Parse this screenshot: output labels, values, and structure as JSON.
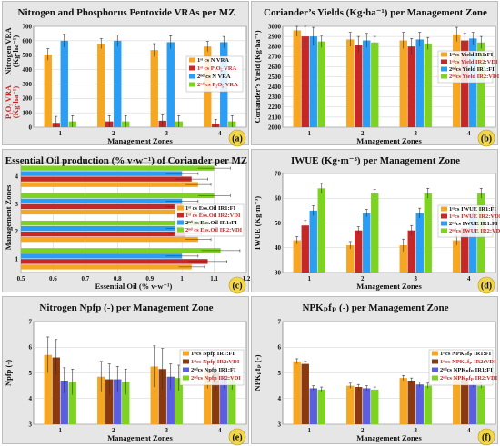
{
  "chart_data": [
    {
      "id": "a",
      "type": "bar",
      "letter": "(a)",
      "title": "Nitrogen and Phosphorus Pentoxide VRAs per MZ",
      "xlabel": "Management Zones",
      "ylabel_lines": [
        {
          "text": "Nitrogen VRA",
          "color": "#111111"
        },
        {
          "text": "(Kg·ha⁻¹)",
          "color": "#111111"
        },
        {
          "text": "P₂O₅ VRA",
          "color": "#c62828"
        },
        {
          "text": "(Kg·ha⁻¹)",
          "color": "#c62828"
        }
      ],
      "categories": [
        "1",
        "2",
        "3",
        "4"
      ],
      "ylim": [
        0,
        700
      ],
      "yticks": [
        0,
        100,
        200,
        300,
        400,
        500,
        600,
        700
      ],
      "series": [
        {
          "name": "1ˢᵗ cs N VRA",
          "color": "#f5a623",
          "text_color": "#111111",
          "values": [
            505,
            580,
            535,
            560
          ],
          "err": [
            40,
            35,
            45,
            35
          ]
        },
        {
          "name": "1ˢᵗ cs P₂O₅ VRA",
          "color": "#c62828",
          "text_color": "#c62828",
          "values": [
            30,
            40,
            45,
            25
          ],
          "err": [
            45,
            40,
            40,
            30
          ]
        },
        {
          "name": "2ⁿᵈ cs N VRA",
          "color": "#2a9df4",
          "text_color": "#111111",
          "values": [
            600,
            600,
            590,
            590
          ],
          "err": [
            45,
            40,
            45,
            40
          ]
        },
        {
          "name": "2ⁿᵈ cs P₂O₅ VRA",
          "color": "#7ed321",
          "text_color": "#c62828",
          "values": [
            40,
            40,
            40,
            40
          ],
          "err": [
            40,
            40,
            40,
            40
          ]
        }
      ]
    },
    {
      "id": "b",
      "type": "bar",
      "letter": "(b)",
      "title": "Coriander’s Yields (Kg·ha⁻¹) per Management Zone",
      "xlabel": "Management Zones",
      "ylabel_lines": [
        {
          "text": "Coriander’s Yield (Kg·ha⁻¹)",
          "color": "#111111"
        }
      ],
      "categories": [
        "1",
        "2",
        "3",
        "4"
      ],
      "ylim": [
        2000,
        3000
      ],
      "yticks": [
        2000,
        2100,
        2200,
        2300,
        2400,
        2500,
        2600,
        2700,
        2800,
        2900,
        3000
      ],
      "series": [
        {
          "name": "1ˢᵗcs Yield IR1:FI",
          "color": "#f5a623",
          "text_color": "#111111",
          "values": [
            2960,
            2870,
            2860,
            2920
          ],
          "err": [
            60,
            70,
            80,
            70
          ]
        },
        {
          "name": "1ˢᵗcs Yield IR2:VDI",
          "color": "#c62828",
          "text_color": "#c62828",
          "values": [
            2900,
            2820,
            2800,
            2860
          ],
          "err": [
            120,
            80,
            80,
            70
          ]
        },
        {
          "name": "2ⁿᵈcs Yield IR1:FI",
          "color": "#2a9df4",
          "text_color": "#111111",
          "values": [
            2900,
            2860,
            2870,
            2880
          ],
          "err": [
            90,
            70,
            70,
            60
          ]
        },
        {
          "name": "2ⁿᵈcs Yield IR2:VDI",
          "color": "#7ed321",
          "text_color": "#c62828",
          "values": [
            2850,
            2840,
            2830,
            2840
          ],
          "err": [
            60,
            60,
            60,
            60
          ]
        }
      ]
    },
    {
      "id": "c",
      "type": "hbar",
      "letter": "(c)",
      "title": "Essential Oil production (% v·w⁻¹) of Coriander per MZ",
      "xlabel": "Essential Oil (% v·w⁻¹)",
      "ylabel_lines": [
        {
          "text": "Management Zones",
          "color": "#111111"
        }
      ],
      "categories": [
        "1",
        "2",
        "3",
        "4"
      ],
      "xlim": [
        0.5,
        1.2
      ],
      "xticks": [
        0.5,
        0.6,
        0.7,
        0.8,
        0.9,
        1.0,
        1.1,
        1.2
      ],
      "series": [
        {
          "name": "1ˢᵗ cs Ess.Oil IR1:FI",
          "color": "#f5a623",
          "text_color": "#111111",
          "values": [
            1.03,
            1.05,
            1.03,
            1.05
          ],
          "err": [
            0.04,
            0.04,
            0.04,
            0.04
          ]
        },
        {
          "name": "1ˢᵗ cs Ess.Oil IR2:VDI",
          "color": "#c62828",
          "text_color": "#c62828",
          "values": [
            1.08,
            1.01,
            1.0,
            1.03
          ],
          "err": [
            0.06,
            0.05,
            0.05,
            0.05
          ]
        },
        {
          "name": "2ⁿᵈ cs Ess.Oil IR1:FI",
          "color": "#2a9df4",
          "text_color": "#111111",
          "values": [
            1.0,
            1.0,
            1.0,
            1.0
          ],
          "err": [
            0.05,
            0.05,
            0.05,
            0.05
          ]
        },
        {
          "name": "2ⁿᵈ cs Ess.Oil IR2:VDI",
          "color": "#7ed321",
          "text_color": "#c62828",
          "values": [
            1.12,
            1.08,
            1.1,
            1.1
          ],
          "err": [
            0.06,
            0.05,
            0.05,
            0.05
          ]
        }
      ]
    },
    {
      "id": "d",
      "type": "bar",
      "letter": "(d)",
      "title": "IWUE (Kg·m⁻³) per Management Zone",
      "xlabel": "Management Zones",
      "ylabel_lines": [
        {
          "text": "IWUE (Kg·m⁻³)",
          "color": "#111111"
        }
      ],
      "categories": [
        "1",
        "2",
        "3",
        "4"
      ],
      "ylim": [
        30,
        70
      ],
      "yticks": [
        30,
        40,
        50,
        60,
        70
      ],
      "series": [
        {
          "name": "1ˢᵗcs IWUE IR1:FI",
          "color": "#f5a623",
          "text_color": "#111111",
          "values": [
            43,
            41,
            41,
            43
          ],
          "err": [
            1.5,
            1.5,
            2.5,
            2
          ]
        },
        {
          "name": "1ˢᵗcs IWUE IR2:VDI",
          "color": "#c62828",
          "text_color": "#c62828",
          "values": [
            49,
            47,
            47,
            48
          ],
          "err": [
            2,
            1.5,
            2,
            2
          ]
        },
        {
          "name": "2ⁿᵈcs IWUE IR1:FI",
          "color": "#2a9df4",
          "text_color": "#111111",
          "values": [
            55,
            54,
            54,
            54
          ],
          "err": [
            2,
            1.5,
            2,
            2
          ]
        },
        {
          "name": "2ⁿᵈcs IWUE IR2:VDI",
          "color": "#7ed321",
          "text_color": "#c62828",
          "values": [
            64,
            62,
            62,
            62
          ],
          "err": [
            2,
            1.5,
            2,
            2
          ]
        }
      ]
    },
    {
      "id": "e",
      "type": "bar",
      "letter": "(e)",
      "title": "Nitrogen Npfp (-) per Management Zone",
      "xlabel": "Management Zones",
      "ylabel_lines": [
        {
          "text": "Npfp (-)",
          "color": "#111111"
        }
      ],
      "categories": [
        "1",
        "2",
        "3",
        "4"
      ],
      "ylim": [
        3,
        7
      ],
      "yticks": [
        3,
        4,
        5,
        6,
        7
      ],
      "series": [
        {
          "name": "1ˢᵗcs Npfp IR1:FI",
          "color": "#f5a623",
          "text_color": "#111111",
          "values": [
            5.7,
            4.85,
            5.25,
            5.1
          ],
          "err": [
            0.7,
            0.6,
            0.8,
            0.7
          ]
        },
        {
          "name": "1ˢᵗcs Npfp IR2:VDI",
          "color": "#8b3a0f",
          "text_color": "#c62828",
          "values": [
            5.6,
            4.75,
            5.15,
            5.0
          ],
          "err": [
            0.7,
            0.6,
            0.8,
            0.7
          ]
        },
        {
          "name": "2ⁿᵈcs Npfp IR1:FI",
          "color": "#5a5fe0",
          "text_color": "#111111",
          "values": [
            4.7,
            4.75,
            4.85,
            4.9
          ],
          "err": [
            0.5,
            0.5,
            0.5,
            0.5
          ]
        },
        {
          "name": "2ⁿᵈcs Npfp IR2:VDI",
          "color": "#7ed321",
          "text_color": "#c62828",
          "values": [
            4.65,
            4.65,
            4.8,
            4.85
          ],
          "err": [
            0.5,
            0.5,
            0.5,
            0.5
          ]
        }
      ]
    },
    {
      "id": "f",
      "type": "bar",
      "letter": "(f)",
      "title": "NPKₚfₚ (-) per Management Zone",
      "xlabel": "Management Zones",
      "ylabel_lines": [
        {
          "text": "NPKₚfₚ (-)",
          "color": "#111111"
        }
      ],
      "categories": [
        "1",
        "2",
        "3",
        "4"
      ],
      "ylim": [
        3,
        7
      ],
      "yticks": [
        3,
        4,
        5,
        6,
        7
      ],
      "series": [
        {
          "name": "1ˢᵗcs NPKₚfₚ IR1:FI",
          "color": "#f5a623",
          "text_color": "#111111",
          "values": [
            5.45,
            4.5,
            4.8,
            4.9
          ],
          "err": [
            0.1,
            0.1,
            0.1,
            0.1
          ]
        },
        {
          "name": "1ˢᵗcs NPKₚfₚ IR2:VDI",
          "color": "#8b3a0f",
          "text_color": "#c62828",
          "values": [
            5.35,
            4.45,
            4.7,
            4.8
          ],
          "err": [
            0.1,
            0.1,
            0.1,
            0.1
          ]
        },
        {
          "name": "2ⁿᵈcs NPKₚfₚ IR1:FI",
          "color": "#5a5fe0",
          "text_color": "#111111",
          "values": [
            4.4,
            4.4,
            4.55,
            4.55
          ],
          "err": [
            0.1,
            0.1,
            0.1,
            0.1
          ]
        },
        {
          "name": "2ⁿᵈcs NPKₚfₚ IR2:VDI",
          "color": "#7ed321",
          "text_color": "#c62828",
          "values": [
            4.35,
            4.35,
            4.5,
            4.5
          ],
          "err": [
            0.1,
            0.1,
            0.1,
            0.1
          ]
        }
      ]
    }
  ]
}
